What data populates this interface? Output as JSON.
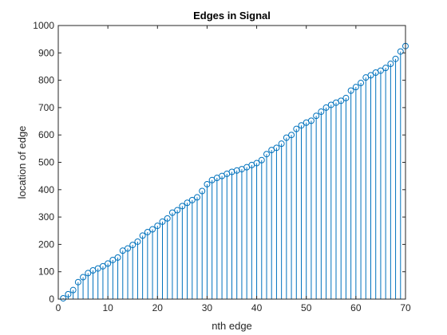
{
  "chart_data": {
    "type": "stem",
    "title": "Edges in Signal",
    "xlabel": "nth edge",
    "ylabel": "location of edge",
    "xlim": [
      0,
      70
    ],
    "ylim": [
      0,
      1000
    ],
    "x_ticks": [
      0,
      10,
      20,
      30,
      40,
      50,
      60,
      70
    ],
    "y_ticks": [
      0,
      100,
      200,
      300,
      400,
      500,
      600,
      700,
      800,
      900,
      1000
    ],
    "grid": false,
    "marker": "circle",
    "series_color": "#0072BD",
    "x": [
      1,
      2,
      3,
      4,
      5,
      6,
      7,
      8,
      9,
      10,
      11,
      12,
      13,
      14,
      15,
      16,
      17,
      18,
      19,
      20,
      21,
      22,
      23,
      24,
      25,
      26,
      27,
      28,
      29,
      30,
      31,
      32,
      33,
      34,
      35,
      36,
      37,
      38,
      39,
      40,
      41,
      42,
      43,
      44,
      45,
      46,
      47,
      48,
      49,
      50,
      51,
      52,
      53,
      54,
      55,
      56,
      57,
      58,
      59,
      60,
      61,
      62,
      63,
      64,
      65,
      66,
      67,
      68,
      69,
      70
    ],
    "y": [
      3,
      18,
      33,
      62,
      80,
      95,
      105,
      112,
      120,
      130,
      143,
      152,
      177,
      185,
      198,
      210,
      232,
      245,
      255,
      268,
      283,
      295,
      316,
      325,
      340,
      352,
      362,
      372,
      395,
      420,
      435,
      443,
      450,
      458,
      465,
      470,
      475,
      482,
      490,
      497,
      508,
      530,
      545,
      553,
      568,
      590,
      600,
      622,
      635,
      645,
      652,
      670,
      685,
      700,
      710,
      718,
      725,
      735,
      762,
      775,
      790,
      810,
      818,
      828,
      835,
      845,
      860,
      878,
      905,
      925
    ]
  }
}
